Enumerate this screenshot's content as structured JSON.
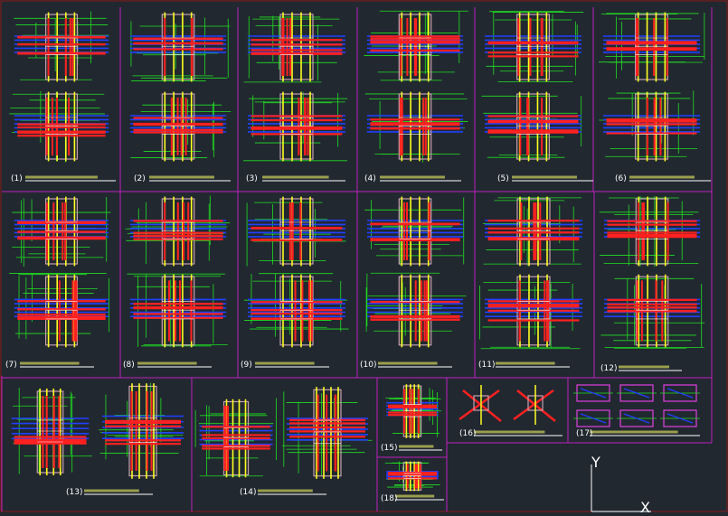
{
  "title": "",
  "axis_labels": {
    "y": "Y",
    "x": "X"
  },
  "colors": {
    "background": "#212830",
    "frame": "#c020c0",
    "longitudinal_bar": "#ff2020",
    "column_bar": "#ffff20",
    "beam_bar": "#2040ff",
    "dimension": "#20e020",
    "concrete": "#c8a0b0",
    "stirrup": "#ffffff"
  },
  "panels": [
    {
      "label": "(1)"
    },
    {
      "label": "(2)"
    },
    {
      "label": "(3)"
    },
    {
      "label": "(4)"
    },
    {
      "label": "(5)"
    },
    {
      "label": "(6)"
    },
    {
      "label": "(7)"
    },
    {
      "label": "(8)"
    },
    {
      "label": "(9)"
    },
    {
      "label": "(10)"
    },
    {
      "label": "(11)"
    },
    {
      "label": "(12)"
    },
    {
      "label": "(13)"
    },
    {
      "label": "(14)"
    },
    {
      "label": "(15)"
    },
    {
      "label": "(16)"
    },
    {
      "label": "(17)"
    },
    {
      "label": "(18)"
    }
  ]
}
